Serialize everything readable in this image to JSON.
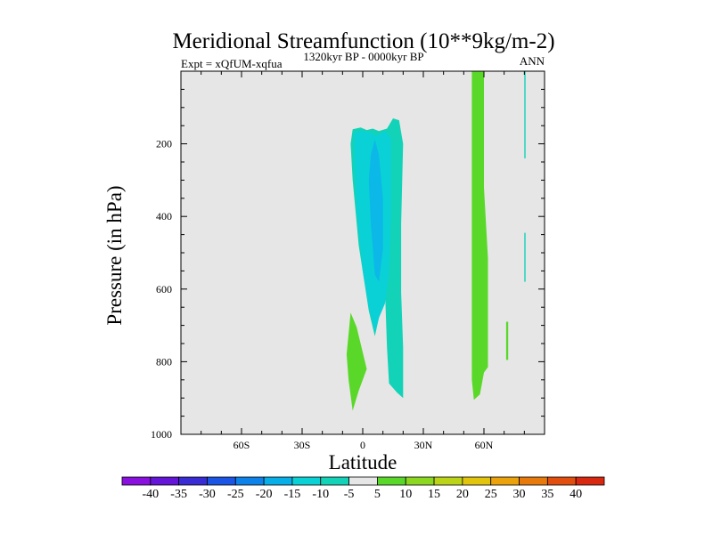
{
  "chart_data": {
    "type": "contour",
    "title": "Meridional Streamfunction (10**9kg/m-2)",
    "subtitle_left": "Expt = xQfUM-xqfua",
    "subtitle_center": "1320kyr BP - 0000kyr BP",
    "subtitle_right": "ANN",
    "xlabel": "Latitude",
    "ylabel": "Pressure (in hPa)",
    "xlim": [
      -90,
      90
    ],
    "ylim": [
      1000,
      0
    ],
    "x_ticks": [
      {
        "value": -60,
        "label": "60S"
      },
      {
        "value": -30,
        "label": "30S"
      },
      {
        "value": 0,
        "label": "0"
      },
      {
        "value": 30,
        "label": "30N"
      },
      {
        "value": 60,
        "label": "60N"
      }
    ],
    "y_ticks": [
      {
        "value": 200,
        "label": "200"
      },
      {
        "value": 400,
        "label": "400"
      },
      {
        "value": 600,
        "label": "600"
      },
      {
        "value": 800,
        "label": "800"
      },
      {
        "value": 1000,
        "label": "1000"
      }
    ],
    "background_color": "#e6e6e6",
    "contour_regions": [
      {
        "name": "tropical-cell-outer",
        "level": -5,
        "color": "#12d3b8",
        "points": [
          [
            -5,
            160
          ],
          [
            -1,
            155
          ],
          [
            2,
            162
          ],
          [
            5,
            158
          ],
          [
            8,
            165
          ],
          [
            12,
            158
          ],
          [
            15,
            130
          ],
          [
            18,
            135
          ],
          [
            20,
            200
          ],
          [
            19,
            420
          ],
          [
            19,
            610
          ],
          [
            20,
            760
          ],
          [
            20,
            900
          ],
          [
            17,
            885
          ],
          [
            13,
            860
          ],
          [
            12,
            760
          ],
          [
            11,
            600
          ],
          [
            8,
            680
          ],
          [
            6,
            730
          ],
          [
            3,
            660
          ],
          [
            -2,
            480
          ],
          [
            -5,
            300
          ],
          [
            -6,
            200
          ]
        ]
      },
      {
        "name": "tropical-cell-middle",
        "level": -10,
        "color": "#0ad1d6",
        "points": [
          [
            -4,
            170
          ],
          [
            0,
            165
          ],
          [
            4,
            170
          ],
          [
            7,
            178
          ],
          [
            11,
            165
          ],
          [
            14,
            185
          ],
          [
            14,
            400
          ],
          [
            13,
            560
          ],
          [
            11,
            640
          ],
          [
            8,
            680
          ],
          [
            6,
            720
          ],
          [
            3,
            650
          ],
          [
            0,
            550
          ],
          [
            -3,
            380
          ],
          [
            -4,
            250
          ]
        ]
      },
      {
        "name": "tropical-cell-inner",
        "level": -15,
        "color": "#0cb8e8",
        "points": [
          [
            4,
            230
          ],
          [
            6,
            188
          ],
          [
            8,
            230
          ],
          [
            10,
            350
          ],
          [
            10,
            490
          ],
          [
            8,
            580
          ],
          [
            6,
            560
          ],
          [
            4,
            420
          ],
          [
            3,
            300
          ]
        ]
      },
      {
        "name": "southern-lower-patch",
        "level": 5,
        "color": "#5ad82a",
        "points": [
          [
            -6,
            665
          ],
          [
            -3,
            705
          ],
          [
            2,
            820
          ],
          [
            -2,
            880
          ],
          [
            -5,
            935
          ],
          [
            -7,
            850
          ],
          [
            -8,
            780
          ]
        ]
      },
      {
        "name": "northern-band",
        "level": 5,
        "color": "#5ad82a",
        "points": [
          [
            54,
            0
          ],
          [
            60,
            0
          ],
          [
            60,
            320
          ],
          [
            62,
            515
          ],
          [
            62,
            815
          ],
          [
            60,
            830
          ],
          [
            58,
            890
          ],
          [
            55,
            905
          ],
          [
            54,
            850
          ],
          [
            54,
            500
          ]
        ]
      },
      {
        "name": "northern-small-strip",
        "level": 5,
        "color": "#5ad82a",
        "points": [
          [
            71,
            690
          ],
          [
            72,
            690
          ],
          [
            72,
            795
          ],
          [
            71,
            795
          ]
        ]
      },
      {
        "name": "polar-thin-strip",
        "level": -5,
        "color": "#12d3b8",
        "points": [
          [
            80,
            0
          ],
          [
            80.6,
            0
          ],
          [
            80.6,
            240
          ],
          [
            80,
            240
          ]
        ]
      },
      {
        "name": "polar-thin-strip-lower",
        "level": -5,
        "color": "#12d3b8",
        "points": [
          [
            80,
            445
          ],
          [
            80.6,
            445
          ],
          [
            80.6,
            580
          ],
          [
            80,
            580
          ]
        ]
      }
    ],
    "colorbar": {
      "labels": [
        "-40",
        "-35",
        "-30",
        "-25",
        "-20",
        "-15",
        "-10",
        "-5",
        "5",
        "10",
        "15",
        "20",
        "25",
        "30",
        "35",
        "40"
      ],
      "colors": [
        "#8a10e0",
        "#6415d8",
        "#3a2cd4",
        "#1a55e6",
        "#0d82ea",
        "#07aee8",
        "#0ad1d6",
        "#12d3b8",
        "#e6e6e6",
        "#5ad82a",
        "#8cd821",
        "#bcd418",
        "#e2c40c",
        "#eca20a",
        "#e87a0c",
        "#e24e0e",
        "#d92810"
      ]
    }
  }
}
